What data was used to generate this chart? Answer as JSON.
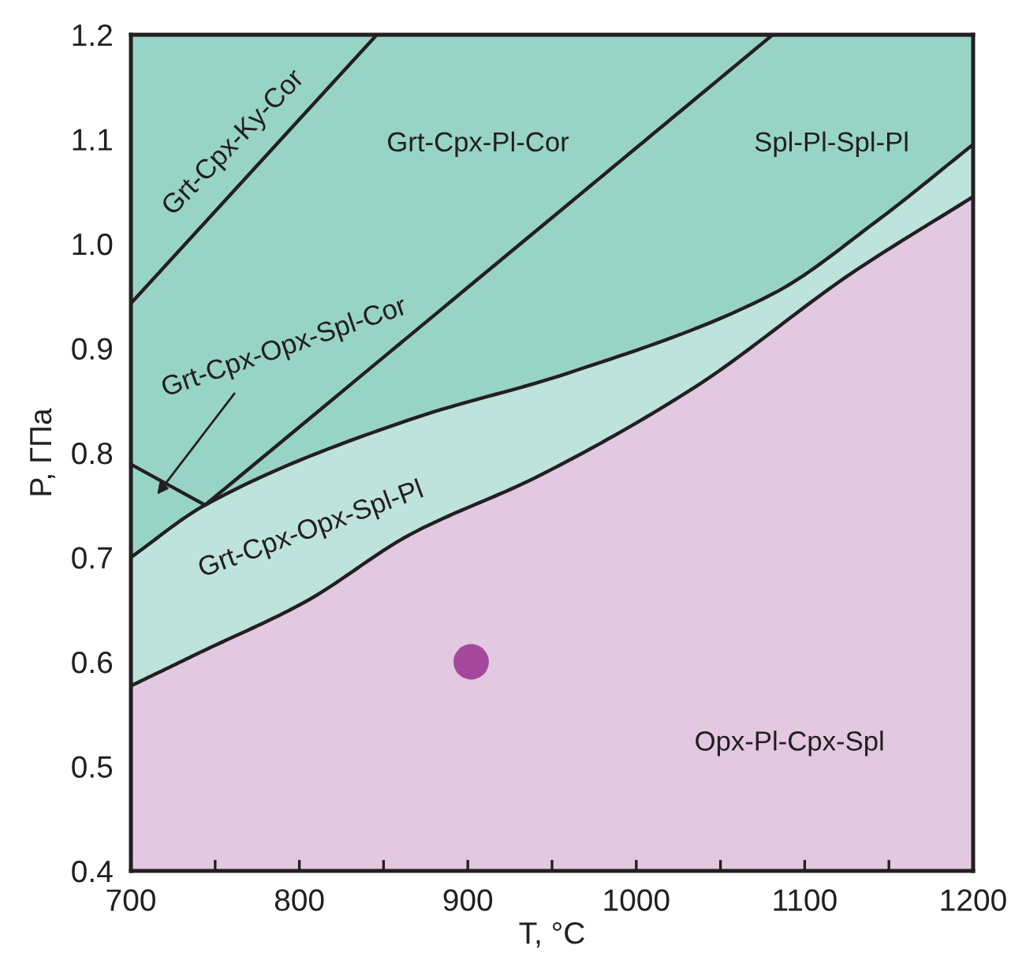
{
  "chart_data": {
    "type": "area",
    "xlabel": "T, °C",
    "ylabel": "P, ГПа",
    "xlim": [
      700,
      1200
    ],
    "ylim": [
      0.4,
      1.2
    ],
    "xticks": [
      700,
      {
        "value": 750,
        "label": null
      },
      800,
      {
        "value": 850,
        "label": null
      },
      900,
      {
        "value": 950,
        "label": null
      },
      1000,
      {
        "value": 1050,
        "label": null
      },
      1100,
      {
        "value": 1150,
        "label": null
      },
      1200
    ],
    "yticks": [
      0.4,
      0.5,
      0.6,
      0.7,
      0.8,
      0.9,
      {
        "value": 1,
        "label": "1.0"
      },
      1.1,
      1.2
    ],
    "grid": false,
    "legend": false,
    "series": [
      {
        "type": "area",
        "color": "#98d4c6",
        "x": [
          700,
          1200
        ],
        "values": [
          1.2,
          1.2
        ]
      },
      {
        "color": "#bde3dc",
        "x": [
          700,
          744,
          866,
          959,
          1081,
          1143,
          1200
        ],
        "values": [
          0.7,
          0.75,
          0.832,
          0.876,
          0.952,
          1.022,
          1.095
        ]
      },
      {
        "color": "#e2c8e0",
        "x": [
          700,
          741,
          803,
          866,
          941,
          1034,
          1128,
          1200
        ],
        "values": [
          0.577,
          0.609,
          0.657,
          0.722,
          0.777,
          0.862,
          0.972,
          1.045
        ]
      },
      {
        "type": "line",
        "color": "#231f20",
        "x": [
          700,
          846
        ],
        "values": [
          0.943,
          1.2
        ]
      },
      {
        "type": "line",
        "color": "#231f20",
        "x": [
          744,
          959,
          1081
        ],
        "values": [
          0.75,
          1.037,
          1.2
        ]
      },
      {
        "type": "line",
        "color": "#231f20",
        "x": [
          700,
          744
        ],
        "values": [
          0.789,
          0.75
        ]
      },
      {
        "type": "scatter",
        "color": "#a5479b",
        "x": [
          902
        ],
        "values": [
          0.6
        ]
      }
    ],
    "annotations": [
      "Grt-Cpx-Ky-Cor",
      "Grt-Cpx-Pl-Cor",
      "Spl-Pl-Spl-Pl",
      "Grt-Cpx-Opx-Spl-Cor",
      "Grt-Cpx-Opx-Spl-Pl",
      "Opx-Pl-Cpx-Spl"
    ]
  }
}
